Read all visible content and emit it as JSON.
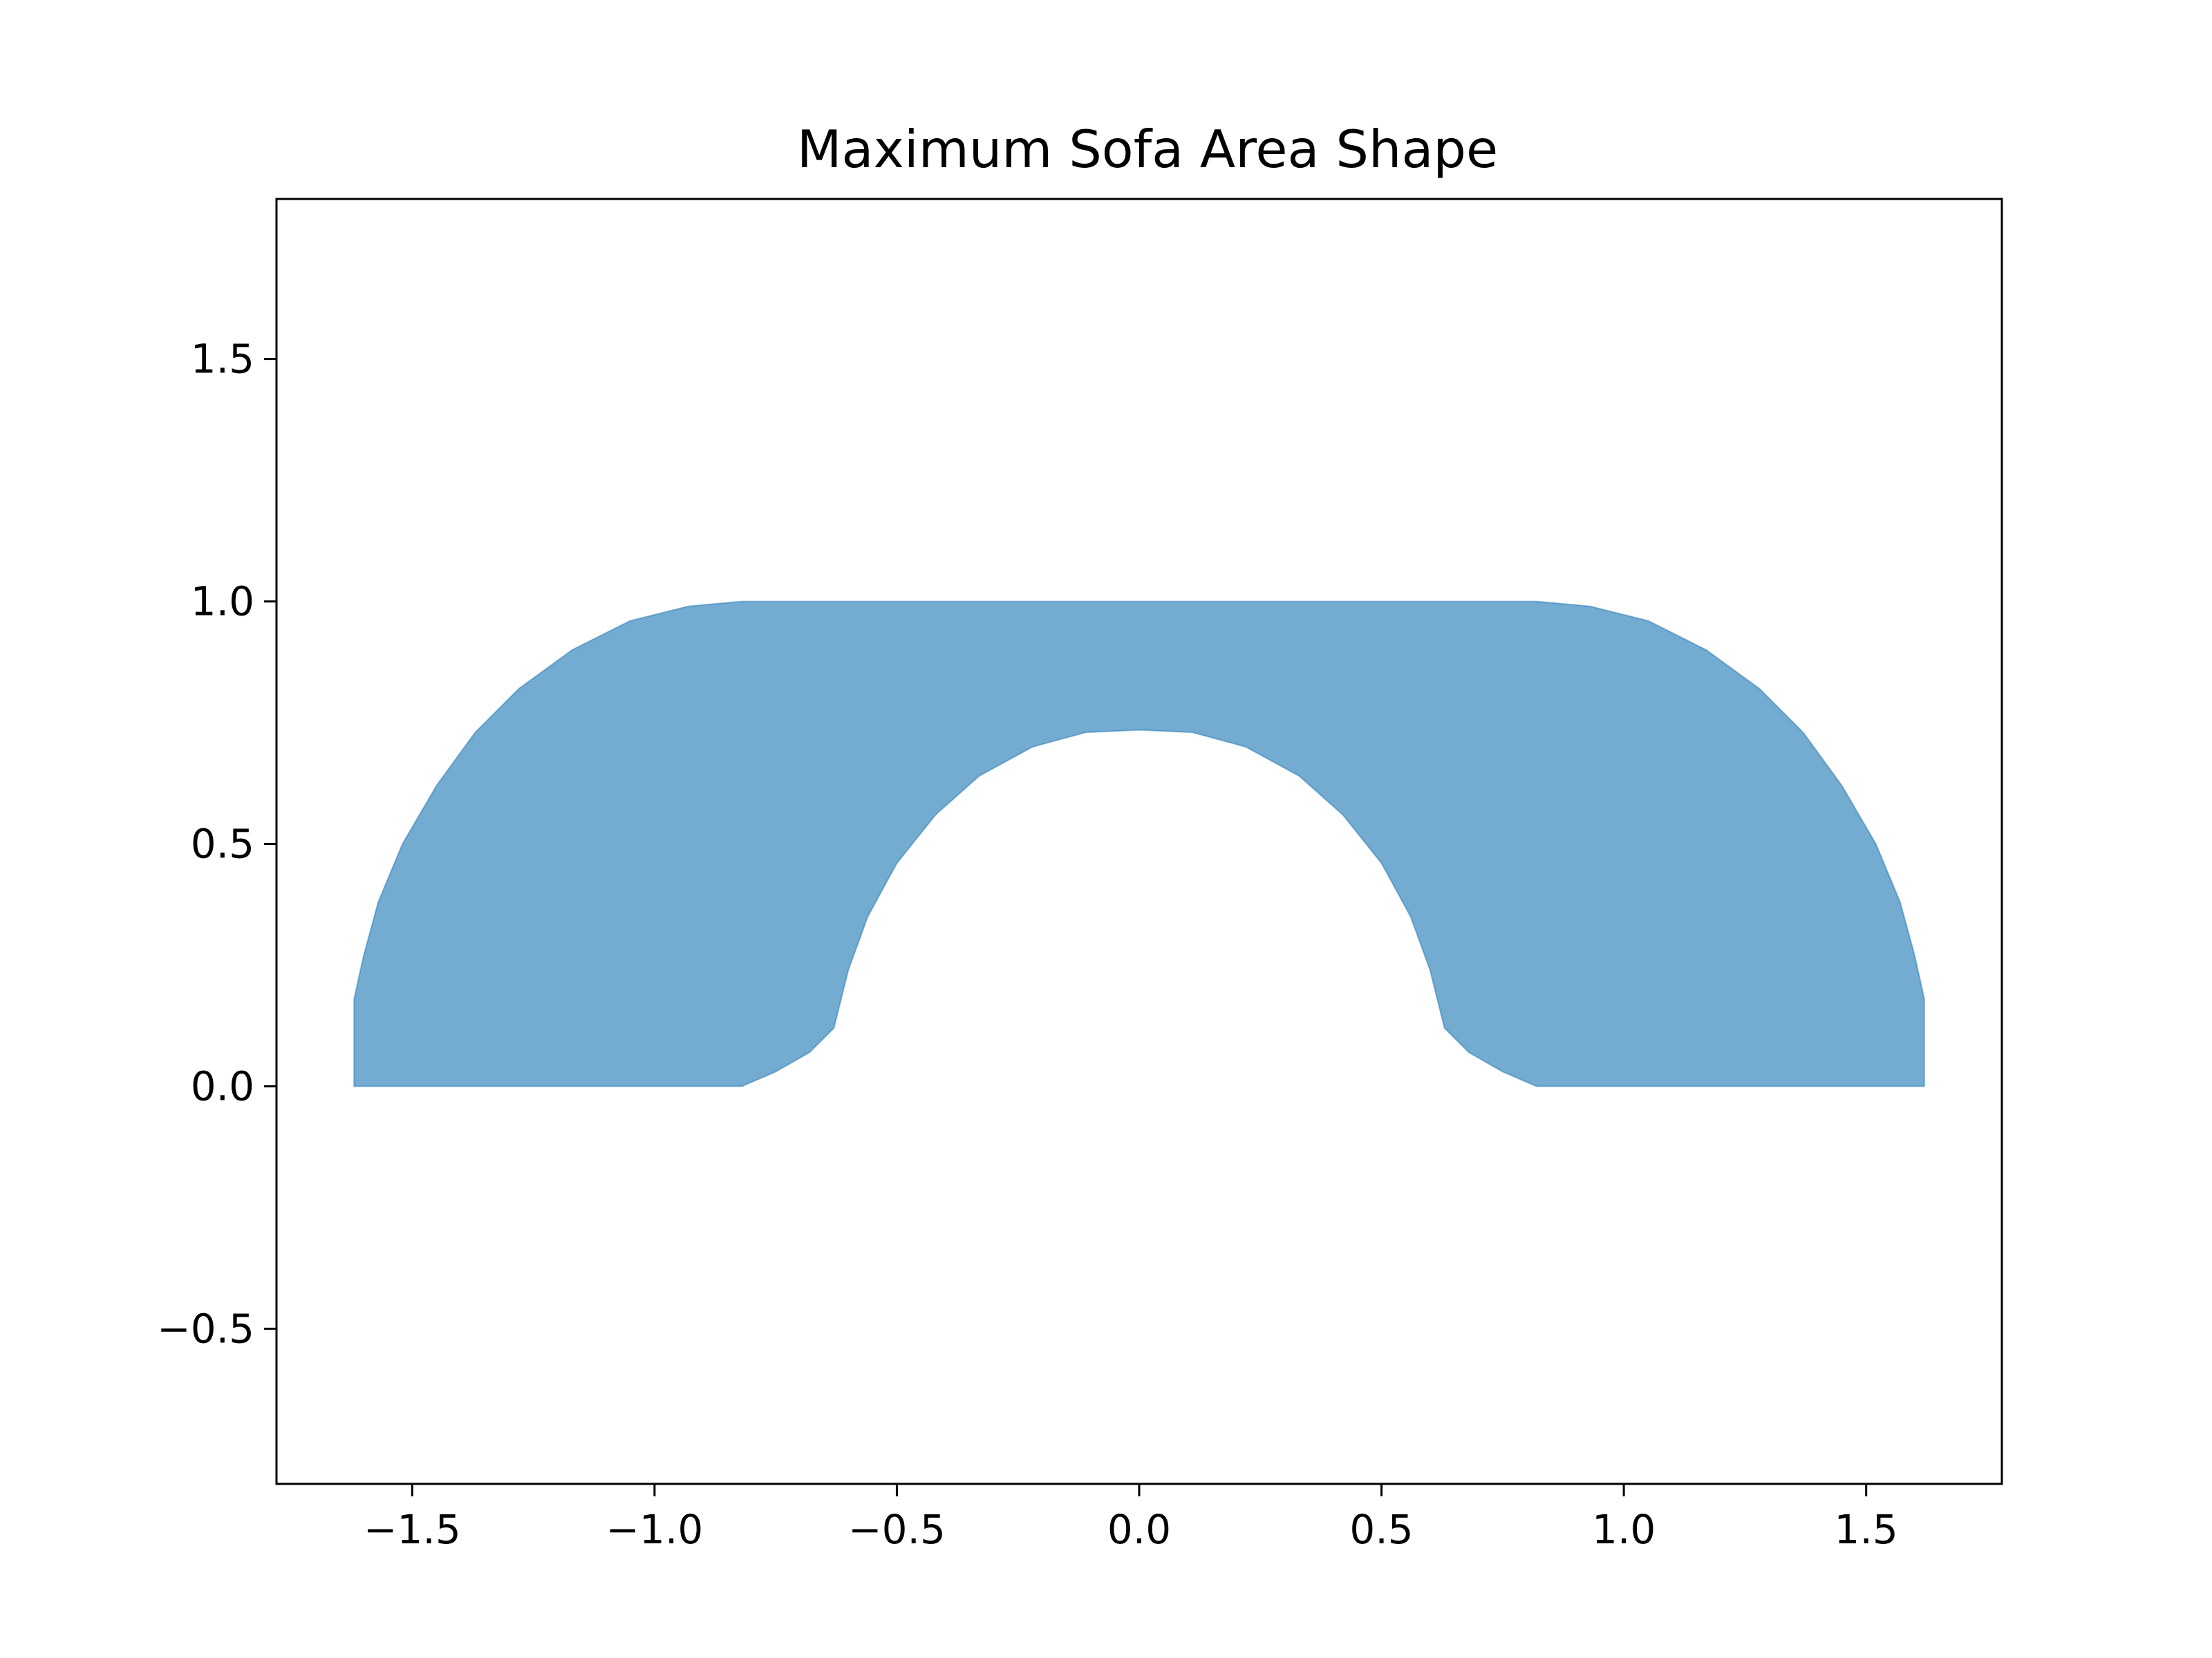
{
  "chart_data": {
    "type": "area",
    "title": "Maximum Sofa Area Shape",
    "xlabel": "",
    "ylabel": "",
    "xlim": [
      -1.78,
      1.78
    ],
    "ylim": [
      -0.82,
      1.83
    ],
    "x_ticks": [
      -1.5,
      -1.0,
      -0.5,
      0.0,
      0.5,
      1.0,
      1.5
    ],
    "x_tick_labels": [
      "−1.5",
      "−1.0",
      "−0.5",
      "0.0",
      "0.5",
      "1.0",
      "1.5"
    ],
    "y_ticks": [
      -0.5,
      0.0,
      0.5,
      1.0,
      1.5
    ],
    "y_tick_labels": [
      "−0.5",
      "0.0",
      "0.5",
      "1.0",
      "1.5"
    ],
    "grid": false,
    "legend": "none",
    "fill_color": "#1f77b4",
    "outer_boundary": [
      [
        -1.62,
        0.0
      ],
      [
        -1.62,
        0.18
      ],
      [
        -1.6,
        0.27
      ],
      [
        -1.57,
        0.38
      ],
      [
        -1.52,
        0.5
      ],
      [
        -1.45,
        0.62
      ],
      [
        -1.37,
        0.73
      ],
      [
        -1.28,
        0.82
      ],
      [
        -1.17,
        0.9
      ],
      [
        -1.05,
        0.96
      ],
      [
        -0.93,
        0.99
      ],
      [
        -0.82,
        1.0
      ],
      [
        0.82,
        1.0
      ],
      [
        0.93,
        0.99
      ],
      [
        1.05,
        0.96
      ],
      [
        1.17,
        0.9
      ],
      [
        1.28,
        0.82
      ],
      [
        1.37,
        0.73
      ],
      [
        1.45,
        0.62
      ],
      [
        1.52,
        0.5
      ],
      [
        1.57,
        0.38
      ],
      [
        1.6,
        0.27
      ],
      [
        1.62,
        0.18
      ],
      [
        1.62,
        0.0
      ]
    ],
    "inner_boundary": [
      [
        0.82,
        0.0
      ],
      [
        0.75,
        0.03
      ],
      [
        0.68,
        0.07
      ],
      [
        0.63,
        0.12
      ],
      [
        0.6,
        0.24
      ],
      [
        0.56,
        0.35
      ],
      [
        0.5,
        0.46
      ],
      [
        0.42,
        0.56
      ],
      [
        0.33,
        0.64
      ],
      [
        0.22,
        0.7
      ],
      [
        0.11,
        0.73
      ],
      [
        0.0,
        0.735
      ],
      [
        -0.11,
        0.73
      ],
      [
        -0.22,
        0.7
      ],
      [
        -0.33,
        0.64
      ],
      [
        -0.42,
        0.56
      ],
      [
        -0.5,
        0.46
      ],
      [
        -0.56,
        0.35
      ],
      [
        -0.6,
        0.24
      ],
      [
        -0.63,
        0.12
      ],
      [
        -0.68,
        0.07
      ],
      [
        -0.75,
        0.03
      ],
      [
        -0.82,
        0.0
      ]
    ]
  }
}
